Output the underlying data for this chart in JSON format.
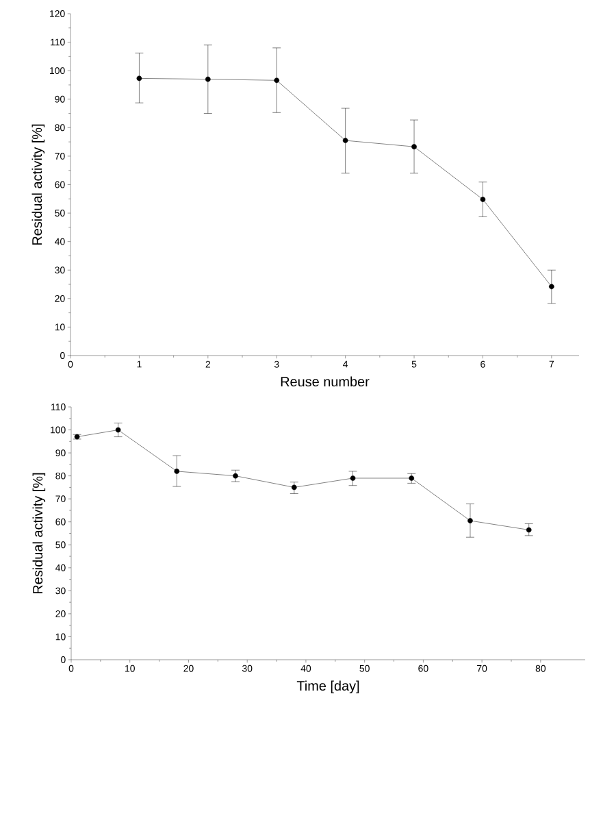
{
  "chart_data": [
    {
      "type": "line",
      "xlabel": "Reuse number",
      "ylabel": "Residual activity [%]",
      "x": [
        1,
        2,
        3,
        4,
        5,
        6,
        7
      ],
      "series": [
        {
          "color": "#000000",
          "values": [
            97.3,
            97,
            96.6,
            75.5,
            73.3,
            54.8,
            24.2
          ],
          "errors": [
            [
              88.7,
              106.2
            ],
            [
              85,
              109
            ],
            [
              85.3,
              108
            ],
            [
              64,
              86.8
            ],
            [
              64,
              82.7
            ],
            [
              48.7,
              60.9
            ],
            [
              18.3,
              30
            ]
          ]
        }
      ],
      "xlim": [
        0,
        7.4
      ],
      "xticks": [
        0,
        1,
        2,
        3,
        4,
        5,
        6,
        7
      ],
      "ylim": [
        0,
        120
      ],
      "yticks": [
        0,
        10,
        20,
        30,
        40,
        50,
        60,
        70,
        80,
        90,
        100,
        110,
        120
      ],
      "marker": "circle",
      "line_style": "solid"
    },
    {
      "type": "line",
      "xlabel": "Time [day]",
      "ylabel": "Residual activity [%]",
      "x": [
        1,
        8,
        18,
        28,
        38,
        48,
        58,
        68,
        78
      ],
      "series": [
        {
          "color": "#000000",
          "values": [
            97,
            100,
            82,
            80,
            75,
            79,
            79,
            60.5,
            56.5
          ],
          "errors": [
            [
              96,
              98
            ],
            [
              97,
              103
            ],
            [
              75.4,
              88.8
            ],
            [
              77.5,
              82.5
            ],
            [
              72.3,
              77.3
            ],
            [
              75.8,
              82
            ],
            [
              76.8,
              81
            ],
            [
              53.3,
              67.8
            ],
            [
              54,
              59.2
            ]
          ]
        }
      ],
      "xlim": [
        0,
        87.6
      ],
      "xticks": [
        0,
        10,
        20,
        30,
        40,
        50,
        60,
        70,
        80
      ],
      "ylim": [
        0,
        110
      ],
      "yticks": [
        0,
        10,
        20,
        30,
        40,
        50,
        60,
        70,
        80,
        90,
        100,
        110
      ],
      "marker": "circle",
      "line_style": "solid"
    }
  ]
}
